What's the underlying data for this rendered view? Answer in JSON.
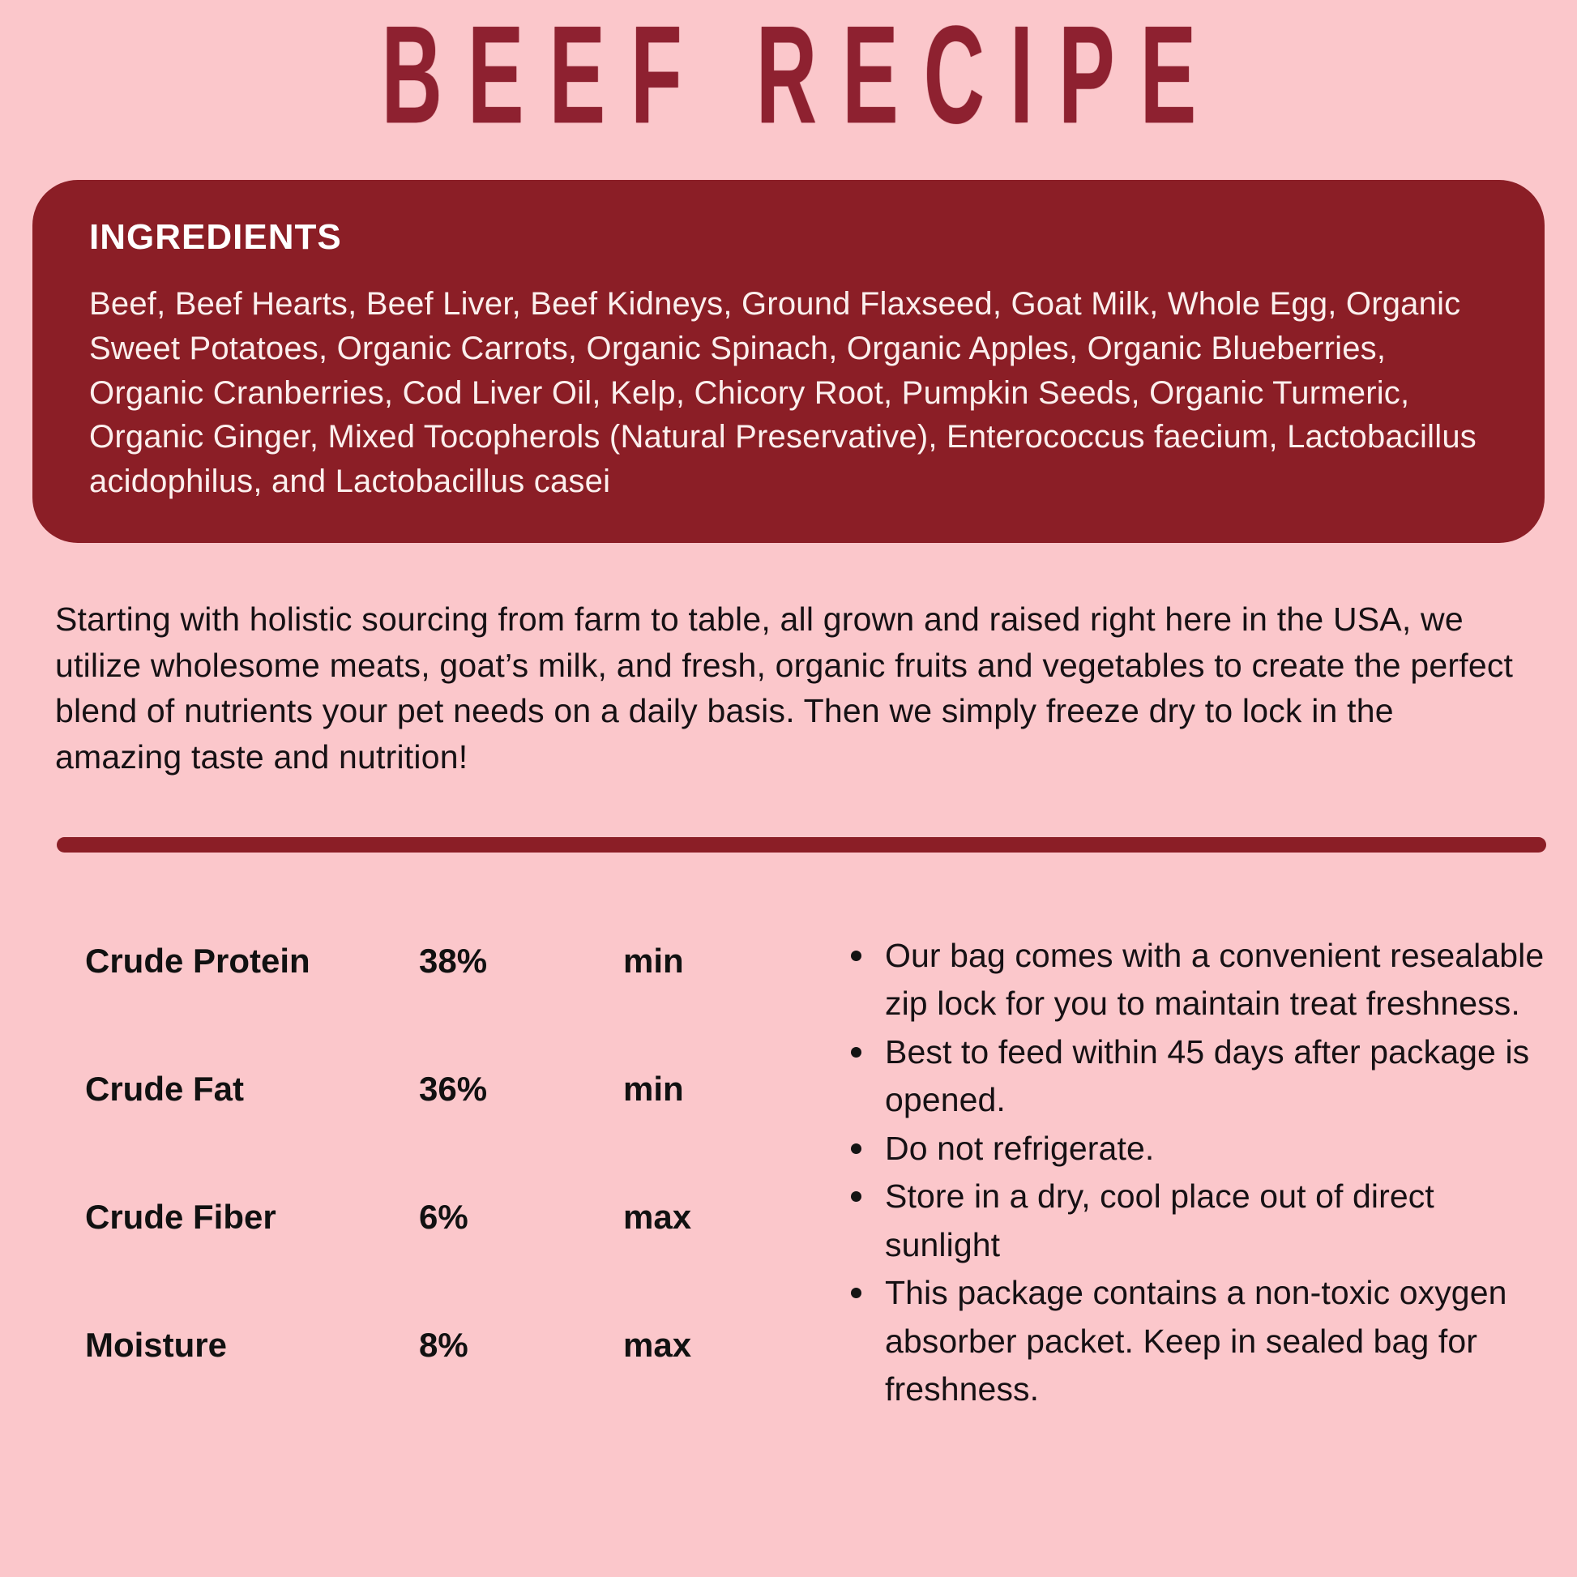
{
  "page": {
    "title": "BEEF RECIPE"
  },
  "ingredients": {
    "heading": "INGREDIENTS",
    "text": "Beef, Beef Hearts, Beef Liver, Beef Kidneys, Ground Flaxseed, Goat Milk, Whole Egg, Organic Sweet Potatoes, Organic Carrots, Organic Spinach, Organic Apples, Organic Blueberries, Organic Cranberries, Cod Liver Oil, Kelp, Chicory Root, Pumpkin Seeds, Organic Turmeric, Organic Ginger, Mixed Tocopherols (Natural Preservative), Enterococcus faecium, Lactobacillus acidophilus, and Lactobacillus casei"
  },
  "description": "Starting with holistic sourcing from farm to table, all grown and raised right here in the USA, we utilize wholesome meats, goat’s milk, and fresh, organic fruits and vegetables to create the perfect blend of nutrients your pet needs on a daily basis. Then we simply freeze dry to lock in the amazing taste and nutrition!",
  "analysis": {
    "rows": [
      {
        "label": "Crude Protein",
        "value": "38%",
        "qualifier": "min"
      },
      {
        "label": "Crude Fat",
        "value": "36%",
        "qualifier": "min"
      },
      {
        "label": "Crude Fiber",
        "value": "6%",
        "qualifier": "max"
      },
      {
        "label": "Moisture",
        "value": "8%",
        "qualifier": "max"
      }
    ]
  },
  "storage_notes": [
    "Our bag comes with a convenient resealable zip lock for you to maintain treat freshness.",
    "Best to feed within 45 days after package is opened.",
    "Do not refrigerate.",
    "Store in a dry, cool place out of direct sunlight",
    "This package contains a non-toxic oxygen absorber packet. Keep in sealed bag for freshness."
  ],
  "colors": {
    "background": "#fbc7cb",
    "panel": "#8b1e26",
    "title": "#8e2130",
    "divider": "#8b1e26",
    "text_dark": "#161114",
    "text_light": "#fbefed"
  }
}
